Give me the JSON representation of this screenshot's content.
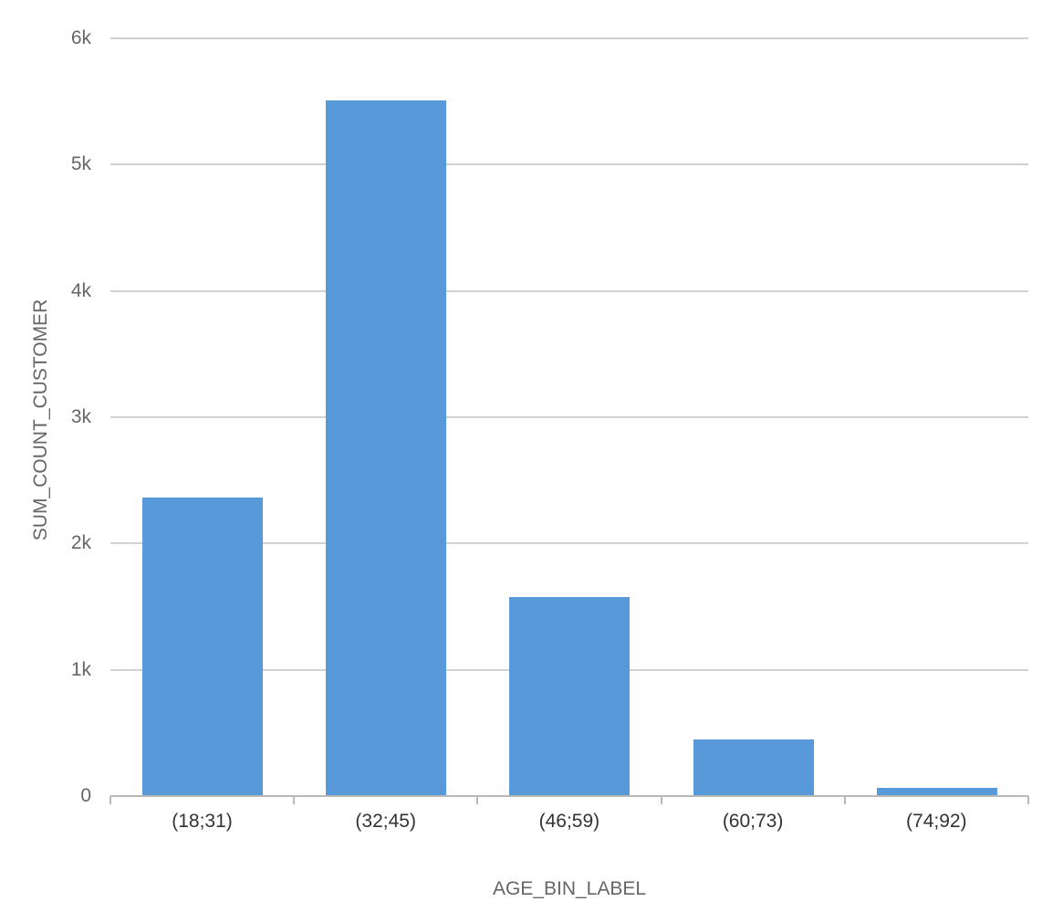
{
  "chart_data": {
    "type": "bar",
    "title": "",
    "xlabel": "AGE_BIN_LABEL",
    "ylabel": "SUM_COUNT_CUSTOMER",
    "categories": [
      "(18;31)",
      "(32;45)",
      "(46;59)",
      "(60;73)",
      "(74;92)"
    ],
    "values": [
      2364,
      5508,
      1576,
      448,
      65
    ],
    "ylim": [
      0,
      6000
    ],
    "yticks": [
      "0",
      "1k",
      "2k",
      "3k",
      "4k",
      "5k",
      "6k"
    ],
    "grid": true,
    "legend": null,
    "bar_color": "#5899da"
  }
}
